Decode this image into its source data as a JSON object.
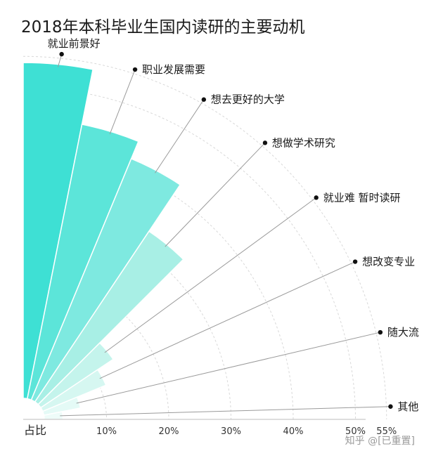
{
  "chart_data": {
    "type": "bar",
    "subtype": "radial-polar-bar",
    "title": "2018年本科毕业生国内读研的主要动机",
    "xlabel": "占比",
    "categories": [
      "就业前景好",
      "职业发展需要",
      "想去更好的大学",
      "想做学术研究",
      "就业难 暂时读研",
      "想改变专业",
      "随大流",
      "其他"
    ],
    "values": [
      54,
      45,
      42,
      33,
      14,
      11,
      6,
      3
    ],
    "x_ticks": [
      "10%",
      "20%",
      "30%",
      "40%",
      "50%",
      "55%"
    ],
    "xlim": [
      0,
      55
    ],
    "colors": [
      "#3ee0d4",
      "#5ce5d9",
      "#7ee9e0",
      "#a8efe5",
      "#c4f4ec",
      "#d6f7f1",
      "#e4faf6",
      "#eefcf9"
    ],
    "grid": true
  },
  "watermark": "知乎 @[已重置]"
}
